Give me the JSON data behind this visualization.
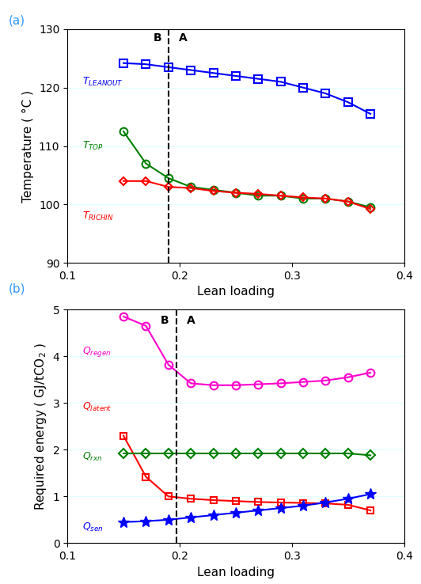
{
  "panel_a": {
    "xlabel": "Lean loading",
    "ylabel": "Temperature ( °C )",
    "xlim": [
      0.1,
      0.4
    ],
    "ylim": [
      90,
      130
    ],
    "yticks": [
      90,
      100,
      110,
      120,
      130
    ],
    "xticks": [
      0.1,
      0.2,
      0.3,
      0.4
    ],
    "vline_x": 0.19,
    "T_LEANOUT": {
      "x": [
        0.15,
        0.17,
        0.19,
        0.21,
        0.23,
        0.25,
        0.27,
        0.29,
        0.31,
        0.33,
        0.35,
        0.37
      ],
      "y": [
        124.2,
        124.0,
        123.5,
        123.0,
        122.5,
        122.0,
        121.5,
        121.0,
        120.0,
        119.0,
        117.5,
        115.5
      ],
      "color": "#0000FF",
      "marker": "s",
      "label_text": "T",
      "label_sub": "LEANOUT",
      "markersize": 7,
      "linewidth": 1.5
    },
    "T_TOP": {
      "x": [
        0.15,
        0.17,
        0.19,
        0.21,
        0.23,
        0.25,
        0.27,
        0.29,
        0.31,
        0.33,
        0.35,
        0.37
      ],
      "y": [
        112.5,
        107.0,
        104.5,
        103.0,
        102.5,
        102.0,
        101.5,
        101.5,
        101.0,
        101.0,
        100.5,
        99.5
      ],
      "color": "#008000",
      "marker": "o",
      "label_text": "T",
      "label_sub": "TOP",
      "markersize": 7,
      "linewidth": 1.5
    },
    "T_RICHIN": {
      "x": [
        0.15,
        0.17,
        0.19,
        0.21,
        0.23,
        0.25,
        0.27,
        0.29,
        0.31,
        0.33,
        0.35,
        0.37
      ],
      "y": [
        104.0,
        104.0,
        103.0,
        102.8,
        102.3,
        102.0,
        101.8,
        101.5,
        101.2,
        101.0,
        100.5,
        99.2
      ],
      "color": "#FF0000",
      "marker": "D",
      "label_text": "T",
      "label_sub": "RICHIN",
      "markersize": 5,
      "linewidth": 1.5
    }
  },
  "panel_b": {
    "xlabel": "Lean loading",
    "ylabel": "Required energy ( GJ/tCO$_2$ )",
    "xlim": [
      0.1,
      0.4
    ],
    "ylim": [
      0,
      5
    ],
    "yticks": [
      0,
      1,
      2,
      3,
      4,
      5
    ],
    "xticks": [
      0.1,
      0.2,
      0.3,
      0.4
    ],
    "vline_x": 0.197,
    "Q_regen": {
      "x": [
        0.15,
        0.17,
        0.19,
        0.21,
        0.23,
        0.25,
        0.27,
        0.29,
        0.31,
        0.33,
        0.35,
        0.37
      ],
      "y": [
        4.85,
        4.65,
        3.82,
        3.42,
        3.38,
        3.38,
        3.4,
        3.42,
        3.45,
        3.48,
        3.55,
        3.65
      ],
      "color": "#FF00CC",
      "marker": "o",
      "label_text": "Q",
      "label_sub": "regen",
      "markersize": 7,
      "linewidth": 1.5
    },
    "Q_latent": {
      "x": [
        0.15,
        0.17,
        0.19,
        0.21,
        0.23,
        0.25,
        0.27,
        0.29,
        0.31,
        0.33,
        0.35,
        0.37
      ],
      "y": [
        2.3,
        1.42,
        1.0,
        0.95,
        0.92,
        0.9,
        0.88,
        0.87,
        0.86,
        0.85,
        0.82,
        0.7
      ],
      "color": "#FF0000",
      "marker": "s",
      "label_text": "Q",
      "label_sub": "latent",
      "markersize": 6,
      "linewidth": 1.5
    },
    "Q_rxn": {
      "x": [
        0.15,
        0.17,
        0.19,
        0.21,
        0.23,
        0.25,
        0.27,
        0.29,
        0.31,
        0.33,
        0.35,
        0.37
      ],
      "y": [
        1.92,
        1.92,
        1.92,
        1.92,
        1.92,
        1.92,
        1.92,
        1.92,
        1.92,
        1.92,
        1.92,
        1.88
      ],
      "color": "#008000",
      "marker": "D",
      "label_text": "Q",
      "label_sub": "rxn",
      "markersize": 6,
      "linewidth": 1.5
    },
    "Q_sen": {
      "x": [
        0.15,
        0.17,
        0.19,
        0.21,
        0.23,
        0.25,
        0.27,
        0.29,
        0.31,
        0.33,
        0.35,
        0.37
      ],
      "y": [
        0.45,
        0.47,
        0.5,
        0.55,
        0.6,
        0.65,
        0.7,
        0.75,
        0.8,
        0.87,
        0.95,
        1.05
      ],
      "color": "#0000FF",
      "marker": "*",
      "label_text": "Q",
      "label_sub": "sen",
      "markersize": 10,
      "linewidth": 1.5
    }
  },
  "figure_bg": "#FFFFFF"
}
